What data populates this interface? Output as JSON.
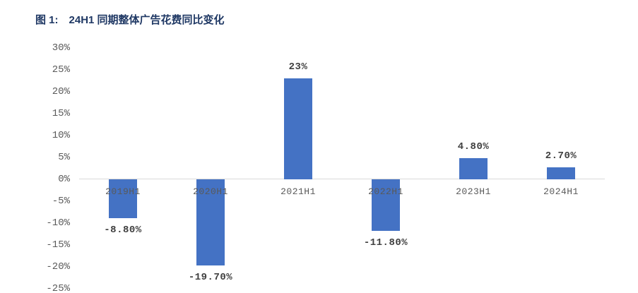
{
  "header": {
    "figure_label": "图 1:",
    "title": "24H1 同期整体广告花费同比变化",
    "title_color": "#1f3864"
  },
  "chart_data": {
    "type": "bar",
    "title": "24H1 同期整体广告花费同比变化",
    "categories": [
      "2019H1",
      "2020H1",
      "2021H1",
      "2022H1",
      "2023H1",
      "2024H1"
    ],
    "values": [
      -8.8,
      -19.7,
      23,
      -11.8,
      4.8,
      2.7
    ],
    "data_labels": [
      "-8.80%",
      "-19.70%",
      "23%",
      "-11.80%",
      "4.80%",
      "2.70%"
    ],
    "xlabel": "",
    "ylabel": "",
    "ylim": [
      -25,
      30
    ],
    "ytick_step": 5,
    "ytick_labels": [
      "30%",
      "25%",
      "20%",
      "15%",
      "10%",
      "5%",
      "0%",
      "-5%",
      "-10%",
      "-15%",
      "-20%",
      "-25%"
    ],
    "grid": false,
    "legend": false,
    "bar_color": "#4472c4",
    "axis_line_color": "#d9d9d9",
    "tick_label_color": "#595959",
    "data_label_color": "#3f3f3f"
  }
}
